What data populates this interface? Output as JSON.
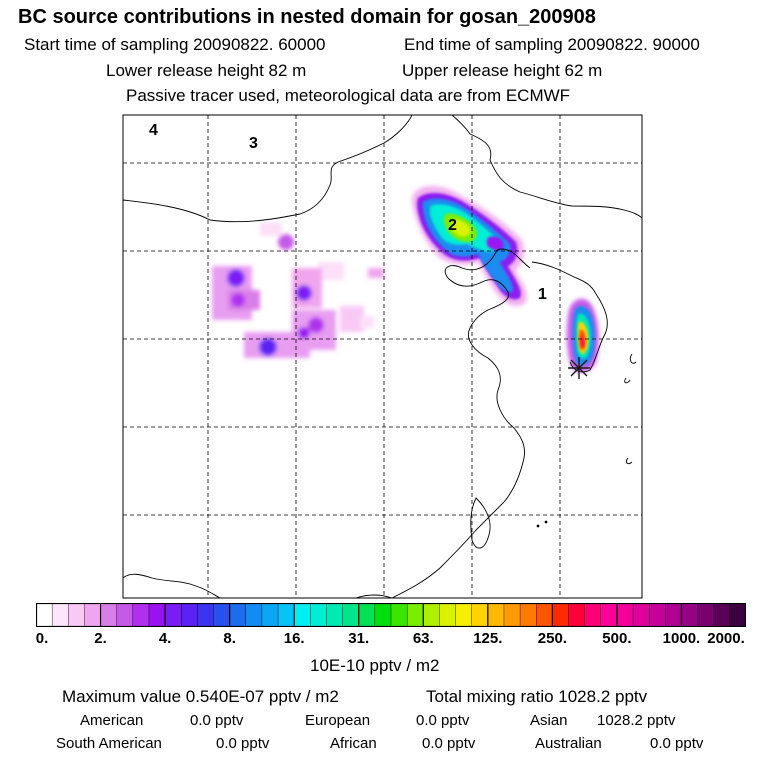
{
  "header": {
    "title": "BC  source contributions in nested domain for gosan_200908",
    "start_time": "Start time of sampling 20090822. 60000",
    "end_time": "End time of sampling 20090822. 90000",
    "lower_release": "Lower release height   82 m",
    "upper_release": "Upper release height   62 m",
    "tracer_info": "Passive tracer used, meteorological data are from ECMWF"
  },
  "map": {
    "region_labels": [
      "1",
      "2",
      "3",
      "4"
    ],
    "receptor_marker": "receptor-star"
  },
  "colorbar": {
    "tick_labels": [
      "0.",
      "2.",
      "4.",
      "8.",
      "16.",
      "31.",
      "63.",
      "125.",
      "250.",
      "500.",
      "1000.",
      "2000."
    ],
    "colors": [
      "#ffffff",
      "#fde6fb",
      "#f8c9f4",
      "#f0a6ee",
      "#d97ee8",
      "#c55ae8",
      "#b030ee",
      "#9a12f2",
      "#7a1cf6",
      "#5a22f4",
      "#3c34f0",
      "#2850ee",
      "#1c6cee",
      "#128cf2",
      "#0aa8f4",
      "#08c4f6",
      "#00f0f2",
      "#00eed6",
      "#00eab4",
      "#00e68a",
      "#00e254",
      "#00de10",
      "#3ae600",
      "#7aee00",
      "#aef000",
      "#d8f200",
      "#f6f000",
      "#ffd400",
      "#ffb800",
      "#ff9a00",
      "#ff7a00",
      "#ff5400",
      "#ff2a00",
      "#ff0038",
      "#ff0078",
      "#ff0098",
      "#f4009c",
      "#e0009c",
      "#c8009a",
      "#b00094",
      "#980088",
      "#7a0070",
      "#5a0058",
      "#3c0040"
    ],
    "units": "10E-10 pptv / m2"
  },
  "summary": {
    "max_label": "Maximum value  0.540E-07 pptv / m2",
    "total_label": "Total mixing ratio     1028.2 pptv"
  },
  "sources": [
    {
      "label": "American",
      "value": "0.0 pptv"
    },
    {
      "label": "European",
      "value": "0.0 pptv"
    },
    {
      "label": "Asian",
      "value": "1028.2 pptv"
    },
    {
      "label": "South American",
      "value": "0.0 pptv"
    },
    {
      "label": "African",
      "value": "0.0 pptv"
    },
    {
      "label": "Australian",
      "value": "0.0 pptv"
    }
  ]
}
